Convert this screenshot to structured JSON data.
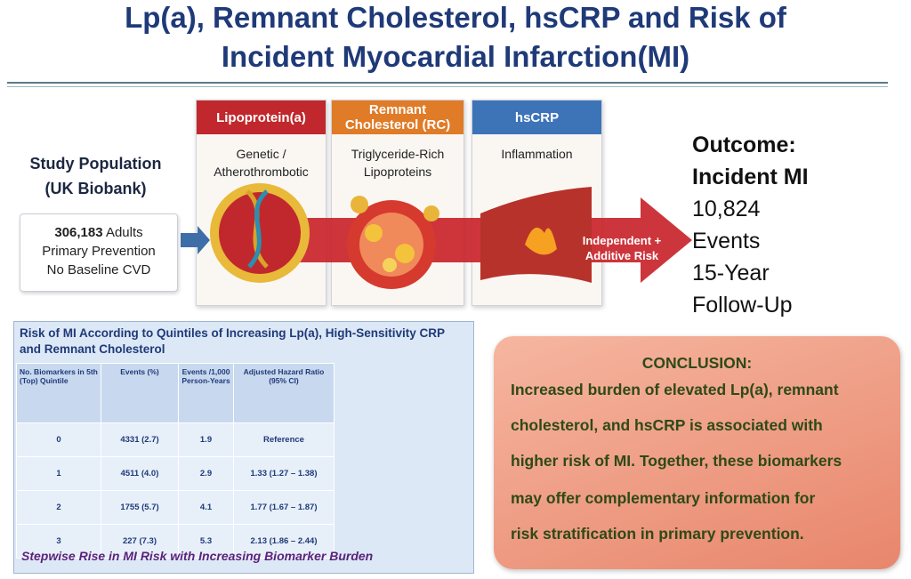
{
  "header": {
    "title_lines": [
      "Lp(a), Remnant Cholesterol, hsCRP and Risk of",
      "Incident Myocardial Infarction(MI)"
    ]
  },
  "population": {
    "title_lines": [
      "Study Population",
      "(UK Biobank)"
    ],
    "count": "306,183",
    "count_label": "Adults",
    "details": [
      "Primary Prevention",
      "No Baseline CVD"
    ]
  },
  "panels": [
    {
      "label": "Lipoprotein(a)",
      "desc": [
        "Genetic /",
        "Atherothrombotic"
      ]
    },
    {
      "label": "Remnant Cholesterol (RC)",
      "desc": [
        "Triglyceride-Rich",
        "Lipoproteins"
      ]
    },
    {
      "label": "hsCRP",
      "desc": [
        "Inflammation"
      ]
    }
  ],
  "arrow_text": [
    "Independent +",
    "Additive Risk"
  ],
  "outcome": {
    "lines": [
      "Outcome:",
      "Incident MI",
      "10,824",
      "Events",
      "15-Year",
      "Follow-Up"
    ]
  },
  "table": {
    "title": "Risk of MI According to Quintiles of Increasing Lp(a), High-Sensitivity CRP and Remnant Cholesterol",
    "headers": [
      "No. Biomarkers in 5th (Top) Quintile",
      "Events (%)",
      "Events /1,000 Person-Years",
      "Adjusted Hazard Ratio (95% CI)"
    ],
    "rows": [
      [
        "0",
        "4331 (2.7)",
        "1.9",
        "Reference"
      ],
      [
        "1",
        "4511 (4.0)",
        "2.9",
        "1.33 (1.27 – 1.38)"
      ],
      [
        "2",
        "1755 (5.7)",
        "4.1",
        "1.77 (1.67 – 1.87)"
      ],
      [
        "3",
        "227 (7.3)",
        "5.3",
        "2.13 (1.86 – 2.44)"
      ]
    ],
    "footer": "Stepwise Rise in MI Risk with Increasing Biomarker Burden"
  },
  "conclusion": {
    "heading": "CONCLUSION:",
    "lines": [
      "Increased burden of elevated Lp(a), remnant",
      "cholesterol, and hsCRP is associated with",
      "higher risk of MI. Together, these biomarkers",
      "may offer complementary information for",
      "risk stratification in primary prevention."
    ]
  }
}
